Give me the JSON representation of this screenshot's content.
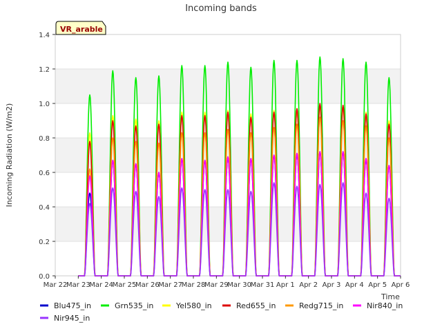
{
  "chart_data": {
    "type": "line",
    "title": "Incoming bands",
    "ylabel": "Incoming Radiation (W/m2)",
    "xlabel": "Time",
    "site_badge": "VR_arable",
    "ylim": [
      0,
      1.4
    ],
    "xlim": [
      "2022-03-22",
      "2022-04-06"
    ],
    "yticks": [
      "0.0",
      "0.2",
      "0.4",
      "0.6",
      "0.8",
      "1.0",
      "1.2",
      "1.4"
    ],
    "xticks": [
      "Mar 22",
      "Mar 23",
      "Mar 24",
      "Mar 25",
      "Mar 26",
      "Mar 27",
      "Mar 28",
      "Mar 29",
      "Mar 30",
      "Mar 31",
      "Apr 1",
      "Apr 2",
      "Apr 3",
      "Apr 4",
      "Apr 5",
      "Apr 6"
    ],
    "grid": true,
    "legend_position": "bottom",
    "day_labels": [
      "Mar 23",
      "Mar 24",
      "Mar 25",
      "Mar 26",
      "Mar 27",
      "Mar 28",
      "Mar 29",
      "Mar 30",
      "Mar 31",
      "Apr 1",
      "Apr 2",
      "Apr 3",
      "Apr 4",
      "Apr 5"
    ],
    "series": [
      {
        "name": "Blu475_in",
        "color": "#0000cc",
        "daily_peak": [
          0.48,
          0.67,
          0.65,
          0.6,
          0.68,
          0.67,
          0.69,
          0.68,
          0.7,
          0.71,
          0.72,
          0.72,
          0.68,
          0.64
        ]
      },
      {
        "name": "Grn535_in",
        "color": "#00ee00",
        "daily_peak": [
          1.05,
          1.19,
          1.15,
          1.16,
          1.22,
          1.22,
          1.24,
          1.21,
          1.25,
          1.25,
          1.27,
          1.26,
          1.24,
          1.15
        ]
      },
      {
        "name": "Yel580_in",
        "color": "#ffff00",
        "daily_peak": [
          0.83,
          0.93,
          0.91,
          0.9,
          0.95,
          0.95,
          0.96,
          0.94,
          0.96,
          0.97,
          0.99,
          0.98,
          0.95,
          0.9
        ]
      },
      {
        "name": "Red655_in",
        "color": "#dd0000",
        "daily_peak": [
          0.78,
          0.9,
          0.87,
          0.88,
          0.93,
          0.93,
          0.95,
          0.92,
          0.95,
          0.97,
          1.0,
          0.99,
          0.94,
          0.88
        ]
      },
      {
        "name": "Redg715_in",
        "color": "#ff9900",
        "daily_peak": [
          0.62,
          0.8,
          0.78,
          0.77,
          0.83,
          0.83,
          0.85,
          0.83,
          0.86,
          0.88,
          0.92,
          0.9,
          0.87,
          0.8
        ]
      },
      {
        "name": "Nir840_in",
        "color": "#ff00ff",
        "daily_peak": [
          0.58,
          0.67,
          0.65,
          0.6,
          0.68,
          0.67,
          0.69,
          0.68,
          0.7,
          0.71,
          0.72,
          0.72,
          0.68,
          0.64
        ]
      },
      {
        "name": "Nir945_in",
        "color": "#9933ff",
        "daily_peak": [
          0.42,
          0.51,
          0.49,
          0.46,
          0.51,
          0.5,
          0.5,
          0.49,
          0.54,
          0.52,
          0.53,
          0.54,
          0.48,
          0.45
        ]
      }
    ]
  }
}
